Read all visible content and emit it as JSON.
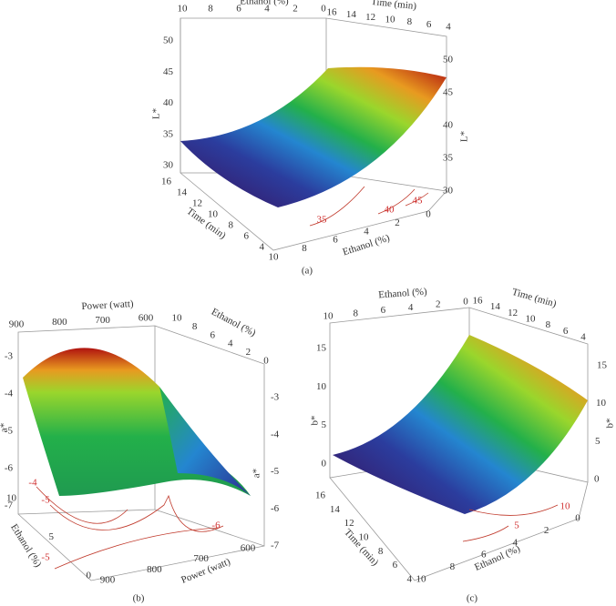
{
  "panels": [
    {
      "caption": "(a)",
      "axes": [
        {
          "title": "Ethanol (%)",
          "ticks": [
            10,
            8,
            6,
            4,
            2,
            0
          ]
        },
        {
          "title": "Time (min)",
          "ticks": [
            16,
            14,
            12,
            10,
            8,
            6,
            4
          ]
        },
        {
          "title": "L*",
          "ticks": [
            50,
            45,
            40,
            35,
            30
          ]
        },
        {
          "title": "L*",
          "ticks": [
            50,
            45,
            40,
            35,
            30
          ]
        },
        {
          "title": "Time (min)",
          "ticks": [
            16,
            14,
            12,
            10,
            8,
            6,
            4
          ]
        },
        {
          "title": "Ethanol (%)",
          "ticks": [
            10,
            8,
            6,
            4,
            2,
            0
          ]
        }
      ],
      "contour_labels": [
        35,
        40,
        45
      ]
    },
    {
      "caption": "(b)",
      "axes": [
        {
          "title": "Power (watt)",
          "ticks": [
            900,
            800,
            700,
            600
          ]
        },
        {
          "title": "Ethanol (%)",
          "ticks": [
            10,
            8,
            6,
            4,
            2,
            0
          ]
        },
        {
          "title": "a*",
          "ticks": [
            -3,
            -4,
            -5,
            -6,
            -7
          ]
        },
        {
          "title": "a*",
          "ticks": [
            -3,
            -4,
            -5,
            -6,
            -7
          ]
        },
        {
          "title": "Ethanol (%)",
          "ticks": [
            10,
            5,
            0
          ]
        },
        {
          "title": "Power (watt)",
          "ticks": [
            900,
            800,
            700,
            600
          ]
        }
      ],
      "contour_labels": [
        -4,
        -5,
        -6,
        -5
      ]
    },
    {
      "caption": "(c)",
      "axes": [
        {
          "title": "Ethanol (%)",
          "ticks": [
            10,
            8,
            6,
            4,
            2,
            0
          ]
        },
        {
          "title": "Time (min)",
          "ticks": [
            16,
            14,
            12,
            10,
            8,
            6,
            4
          ]
        },
        {
          "title": "b*",
          "ticks": [
            15,
            10,
            5,
            0
          ]
        },
        {
          "title": "b*",
          "ticks": [
            15,
            10,
            5,
            0
          ]
        },
        {
          "title": "Time (min)",
          "ticks": [
            16,
            14,
            12,
            10,
            8,
            6,
            4
          ]
        },
        {
          "title": "Ethanol (%)",
          "ticks": [
            10,
            8,
            6,
            4,
            2,
            0
          ]
        }
      ],
      "contour_labels": [
        10,
        5
      ]
    }
  ]
}
